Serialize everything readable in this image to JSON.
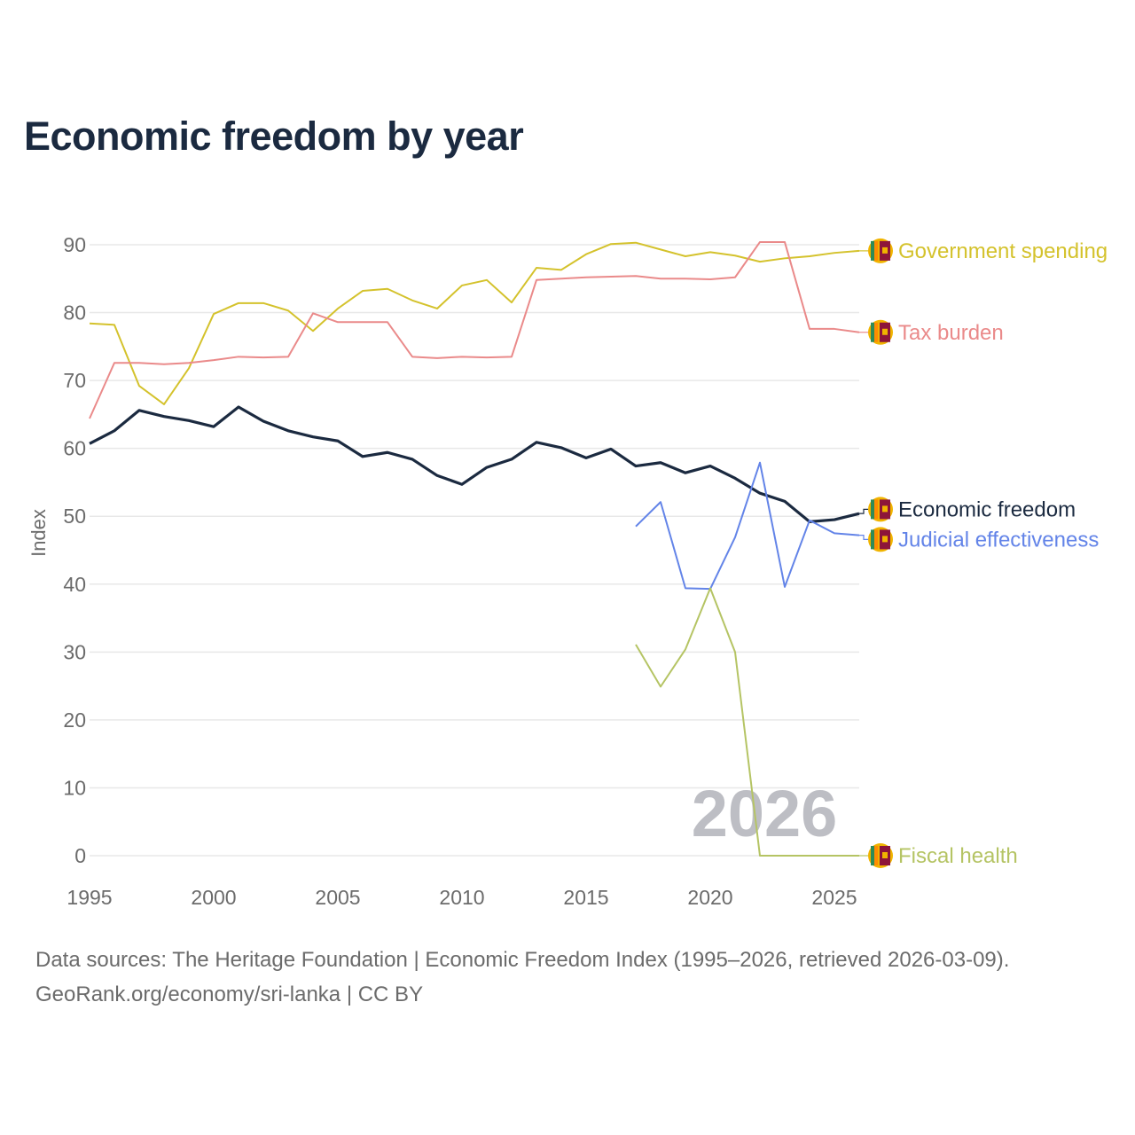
{
  "chart_data": {
    "type": "line",
    "title": "Economic freedom by year",
    "xlabel": "",
    "ylabel": "Index",
    "xlim": [
      1995,
      2026
    ],
    "ylim": [
      0,
      90
    ],
    "yticks": [
      0,
      10,
      20,
      30,
      40,
      50,
      60,
      70,
      80,
      90
    ],
    "xticks": [
      1995,
      2000,
      2005,
      2010,
      2015,
      2020,
      2025
    ],
    "grid": true,
    "watermark": "2026",
    "legend_placement": "right (end-of-line labels)",
    "series": [
      {
        "name": "Government spending",
        "color": "#d4c22c",
        "width": 2,
        "start": 1995,
        "values": [
          78.4,
          78.2,
          69.2,
          66.5,
          71.8,
          79.8,
          81.4,
          81.4,
          80.3,
          77.3,
          80.6,
          83.2,
          83.5,
          81.8,
          80.6,
          84.0,
          84.8,
          81.5,
          86.6,
          86.3,
          88.6,
          90.1,
          90.3,
          89.3,
          88.3,
          88.9,
          88.4,
          87.5,
          88.0,
          88.3,
          88.8,
          89.1
        ]
      },
      {
        "name": "Tax burden",
        "color": "#ea8a8a",
        "width": 2,
        "start": 1995,
        "values": [
          64.4,
          72.6,
          72.6,
          72.4,
          72.6,
          73.0,
          73.5,
          73.4,
          73.5,
          79.9,
          78.6,
          78.6,
          78.6,
          73.5,
          73.3,
          73.5,
          73.4,
          73.5,
          84.8,
          85.0,
          85.2,
          85.3,
          85.4,
          85.0,
          85.0,
          84.9,
          85.2,
          90.4,
          90.4,
          77.6,
          77.6,
          77.1
        ]
      },
      {
        "name": "Economic freedom",
        "color": "#1b2a40",
        "width": 3.2,
        "start": 1995,
        "values": [
          60.7,
          62.6,
          65.6,
          64.7,
          64.1,
          63.2,
          66.1,
          64.0,
          62.6,
          61.7,
          61.1,
          58.8,
          59.4,
          58.4,
          56.0,
          54.7,
          57.2,
          58.4,
          60.9,
          60.1,
          58.6,
          59.9,
          57.4,
          57.9,
          56.4,
          57.4,
          55.6,
          53.4,
          52.2,
          49.2,
          49.5,
          50.4
        ]
      },
      {
        "name": "Judicial effectiveness",
        "color": "#6384e8",
        "width": 2,
        "start": 2017,
        "values": [
          48.5,
          52.1,
          39.4,
          39.3,
          46.9,
          57.9,
          39.6,
          49.4,
          47.5,
          47.2
        ]
      },
      {
        "name": "Fiscal health",
        "color": "#b5c464",
        "width": 2,
        "start": 2017,
        "values": [
          31.1,
          24.9,
          30.4,
          39.4,
          30.0,
          0,
          0,
          0,
          0,
          0
        ]
      }
    ]
  },
  "footer": {
    "line1": "Data sources: The Heritage Foundation | Economic Freedom Index (1995–2026, retrieved 2026-03-09).",
    "line2": "GeoRank.org/economy/sri-lanka | CC BY"
  },
  "flag_icon": "sri-lanka-flag-icon"
}
